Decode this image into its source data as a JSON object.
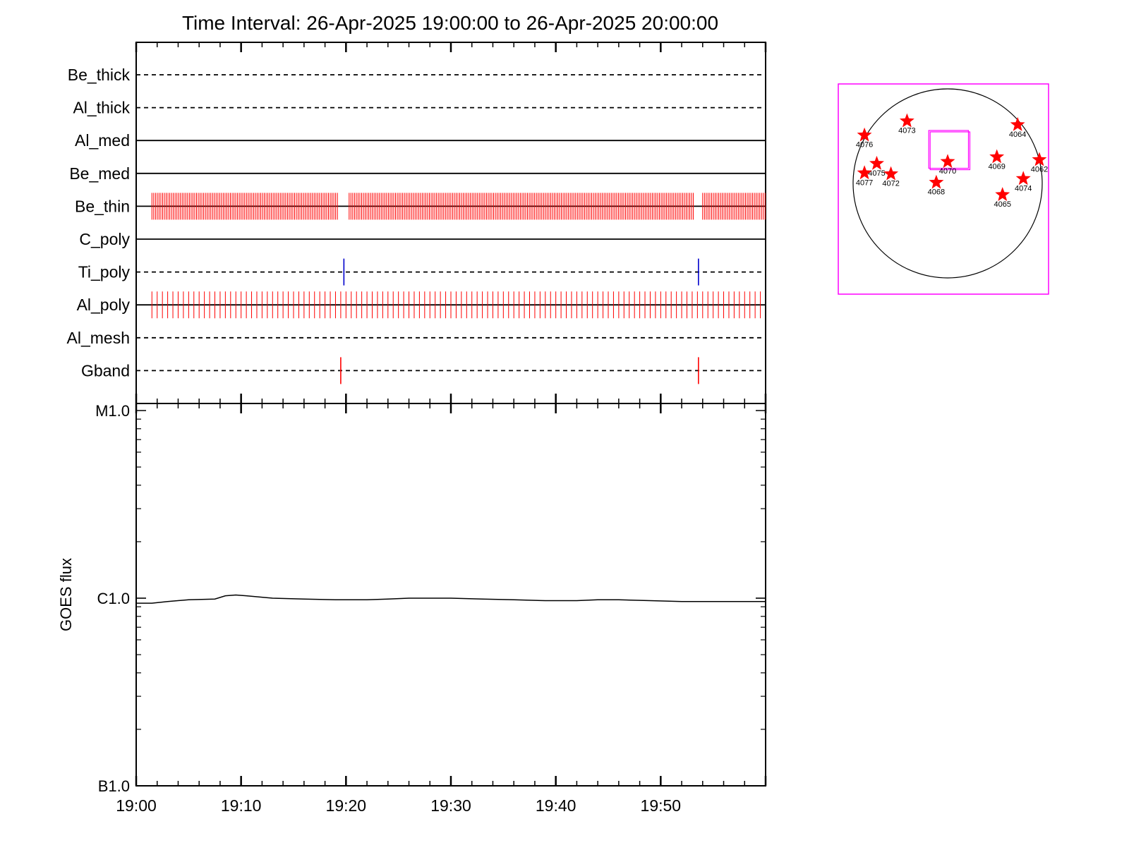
{
  "title": "Time Interval: 26-Apr-2025 19:00:00 to 26-Apr-2025 20:00:00",
  "colors": {
    "axis": "#000000",
    "obs_red": "#ff0000",
    "obs_blue": "#0000cc",
    "map_box": "#ff00ff",
    "star": "#ff0000"
  },
  "chart_data": [
    {
      "type": "timeline",
      "name": "filter observations",
      "x_range_minutes": [
        0,
        60
      ],
      "rows": [
        {
          "label": "Be_thick",
          "line": "dashed",
          "obs": []
        },
        {
          "label": "Al_thick",
          "line": "dashed",
          "obs": []
        },
        {
          "label": "Al_med",
          "line": "solid",
          "obs": []
        },
        {
          "label": "Be_med",
          "line": "solid",
          "obs": []
        },
        {
          "label": "Be_thin",
          "line": "solid",
          "color": "#ff0000",
          "dense": true,
          "obs_spans": [
            [
              1.5,
              19.3
            ],
            [
              20.3,
              53.2
            ],
            [
              54.0,
              60.0
            ]
          ],
          "obs_step_minutes": 0.17
        },
        {
          "label": "C_poly",
          "line": "solid",
          "obs": []
        },
        {
          "label": "Ti_poly",
          "line": "dashed",
          "color": "#0000cc",
          "obs": [
            19.8,
            53.6
          ]
        },
        {
          "label": "Al_poly",
          "line": "solid",
          "color": "#ff0000",
          "obs_spans": [
            [
              1.5,
              59.8
            ]
          ],
          "obs_step_minutes": 0.5
        },
        {
          "label": "Al_mesh",
          "line": "dashed",
          "obs": []
        },
        {
          "label": "Gband",
          "line": "dashed",
          "color": "#ff0000",
          "obs": [
            19.5,
            53.6
          ]
        }
      ]
    },
    {
      "type": "line",
      "ylabel": "GOES flux",
      "scale": "log",
      "y_range": [
        1e-07,
        1e-05
      ],
      "y_ticks": [
        {
          "value": 1e-05,
          "label": "M1.0"
        },
        {
          "value": 1e-06,
          "label": "C1.0"
        },
        {
          "value": 1e-07,
          "label": "B1.0"
        }
      ],
      "x_ticks": [
        "19:00",
        "19:10",
        "19:20",
        "19:30",
        "19:40",
        "19:50"
      ],
      "x_tick_minutes": [
        0,
        10,
        20,
        30,
        40,
        50
      ],
      "series": [
        {
          "x_minutes": [
            0,
            1.5,
            3,
            5,
            7.5,
            8.5,
            9.5,
            10.5,
            13,
            16,
            19,
            22,
            24,
            26,
            28,
            30,
            33,
            36,
            39,
            42,
            44,
            46,
            49,
            52,
            55,
            58,
            60
          ],
          "values": [
            9.4e-07,
            9.4e-07,
            9.6e-07,
            9.8e-07,
            9.9e-07,
            1.03e-06,
            1.04e-06,
            1.03e-06,
            1e-06,
            9.9e-07,
            9.8e-07,
            9.8e-07,
            9.9e-07,
            1e-06,
            1e-06,
            1e-06,
            9.9e-07,
            9.8e-07,
            9.7e-07,
            9.7e-07,
            9.8e-07,
            9.8e-07,
            9.7e-07,
            9.6e-07,
            9.6e-07,
            9.6e-07,
            9.6e-07
          ]
        }
      ]
    },
    {
      "type": "scatter",
      "name": "active region map",
      "x_range": [
        -1,
        1
      ],
      "y_range": [
        -1,
        1
      ],
      "points": [
        {
          "label": "4076",
          "x": -0.88,
          "y": 0.51
        },
        {
          "label": "4073",
          "x": -0.43,
          "y": 0.66
        },
        {
          "label": "4064",
          "x": 0.74,
          "y": 0.62
        },
        {
          "label": "4062",
          "x": 0.97,
          "y": 0.25
        },
        {
          "label": "4075",
          "x": -0.75,
          "y": 0.21
        },
        {
          "label": "4077",
          "x": -0.88,
          "y": 0.11
        },
        {
          "label": "4072",
          "x": -0.6,
          "y": 0.1
        },
        {
          "label": "4070",
          "x": 0.0,
          "y": 0.23
        },
        {
          "label": "4069",
          "x": 0.52,
          "y": 0.28
        },
        {
          "label": "4068",
          "x": -0.12,
          "y": 0.01
        },
        {
          "label": "4074",
          "x": 0.8,
          "y": 0.05
        },
        {
          "label": "4065",
          "x": 0.58,
          "y": -0.12
        }
      ],
      "field_of_view": {
        "x": [
          -0.2,
          0.22
        ],
        "y": [
          0.16,
          0.56
        ]
      }
    }
  ]
}
